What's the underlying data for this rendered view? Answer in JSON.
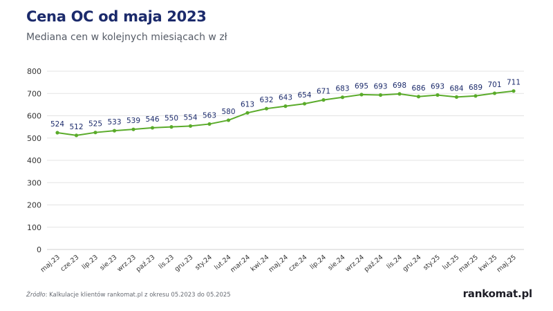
{
  "title": "Cena OC od maja 2023",
  "subtitle": "Mediana cen w kolejnych miesiącach w zł",
  "source": {
    "label": "Źródło",
    "text": ": Kalkulacje klientów rankomat.pl z okresu 05.2023 do 05.2025"
  },
  "brand": "rankomat.pl",
  "colors": {
    "line": "#5aab2a",
    "data_label": "#1b2a6b",
    "grid": "#e3e3e3",
    "axis_text": "#333333"
  },
  "chart_data": {
    "type": "line",
    "categories": [
      "maj.23",
      "cze.23",
      "lip.23",
      "sie.23",
      "wrz.23",
      "paź.23",
      "lis.23",
      "gru.23",
      "sty.24",
      "lut.24",
      "mar.24",
      "kwi.24",
      "maj.24",
      "cze.24",
      "lip.24",
      "sie.24",
      "wrz.24",
      "paź.24",
      "lis.24",
      "gru.24",
      "sty.25",
      "lut.25",
      "mar.25",
      "kwi.25",
      "maj.25"
    ],
    "series": [
      {
        "values": [
          524,
          512,
          525,
          533,
          539,
          546,
          550,
          554,
          563,
          580,
          613,
          632,
          643,
          654,
          671,
          683,
          695,
          693,
          698,
          686,
          693,
          684,
          689,
          701,
          711
        ]
      }
    ],
    "yticks": [
      0,
      100,
      200,
      300,
      400,
      500,
      600,
      700,
      800
    ],
    "ylim": [
      0,
      800
    ],
    "grid": true,
    "data_labels": true,
    "legend": "none"
  }
}
